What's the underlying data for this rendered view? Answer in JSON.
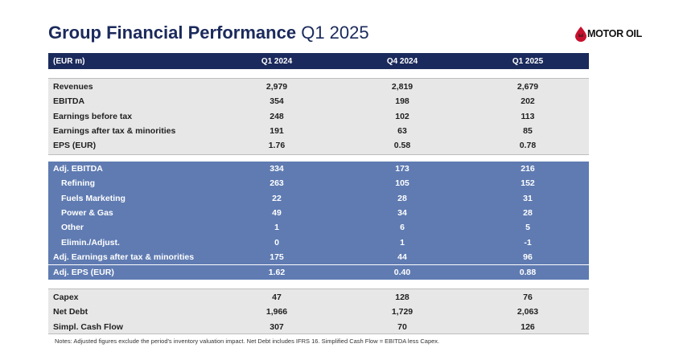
{
  "header": {
    "title_bold": "Group Financial Performance",
    "title_light": "Q1 2025",
    "logo_text": "MOTOR OIL"
  },
  "table": {
    "columns": [
      "(EUR m)",
      "Q1 2024",
      "Q4 2024",
      "Q1 2025"
    ],
    "section1": [
      {
        "label": "Revenues",
        "values": [
          "2,979",
          "2,819",
          "2,679"
        ]
      },
      {
        "label": "EBITDA",
        "values": [
          "354",
          "198",
          "202"
        ]
      },
      {
        "label": "Earnings before tax",
        "values": [
          "248",
          "102",
          "113"
        ]
      },
      {
        "label": "Earnings after tax & minorities",
        "values": [
          "191",
          "63",
          "85"
        ]
      },
      {
        "label": "EPS (EUR)",
        "values": [
          "1.76",
          "0.58",
          "0.78"
        ]
      }
    ],
    "section2": [
      {
        "label": "Adj. EBITDA",
        "values": [
          "334",
          "173",
          "216"
        ]
      },
      {
        "label": "Refining",
        "values": [
          "263",
          "105",
          "152"
        ]
      },
      {
        "label": "Fuels Marketing",
        "values": [
          "22",
          "28",
          "31"
        ]
      },
      {
        "label": "Power & Gas",
        "values": [
          "49",
          "34",
          "28"
        ]
      },
      {
        "label": "Other",
        "values": [
          "1",
          "6",
          "5"
        ]
      },
      {
        "label": "Elimin./Adjust.",
        "values": [
          "0",
          "1",
          "-1"
        ]
      },
      {
        "label": "Adj. Earnings after tax & minorities",
        "values": [
          "175",
          "44",
          "96"
        ]
      },
      {
        "label": "Adj. EPS (EUR)",
        "values": [
          "1.62",
          "0.40",
          "0.88"
        ]
      }
    ],
    "section3": [
      {
        "label": "Capex",
        "values": [
          "47",
          "128",
          "76"
        ]
      },
      {
        "label": "Net Debt",
        "values": [
          "1,966",
          "1,729",
          "2,063"
        ]
      },
      {
        "label": "Simpl. Cash Flow",
        "values": [
          "307",
          "70",
          "126"
        ]
      }
    ]
  },
  "notes": "Notes: Adjusted figures exclude the period's inventory valuation impact. Net Debt includes IFRS 16. Simplified Cash Flow = EBITDA less Capex.",
  "colors": {
    "navy": "#1b2a5c",
    "blue_section": "#5f7bb2",
    "gray_section": "#e7e7e7",
    "logo_red": "#c8102e"
  }
}
